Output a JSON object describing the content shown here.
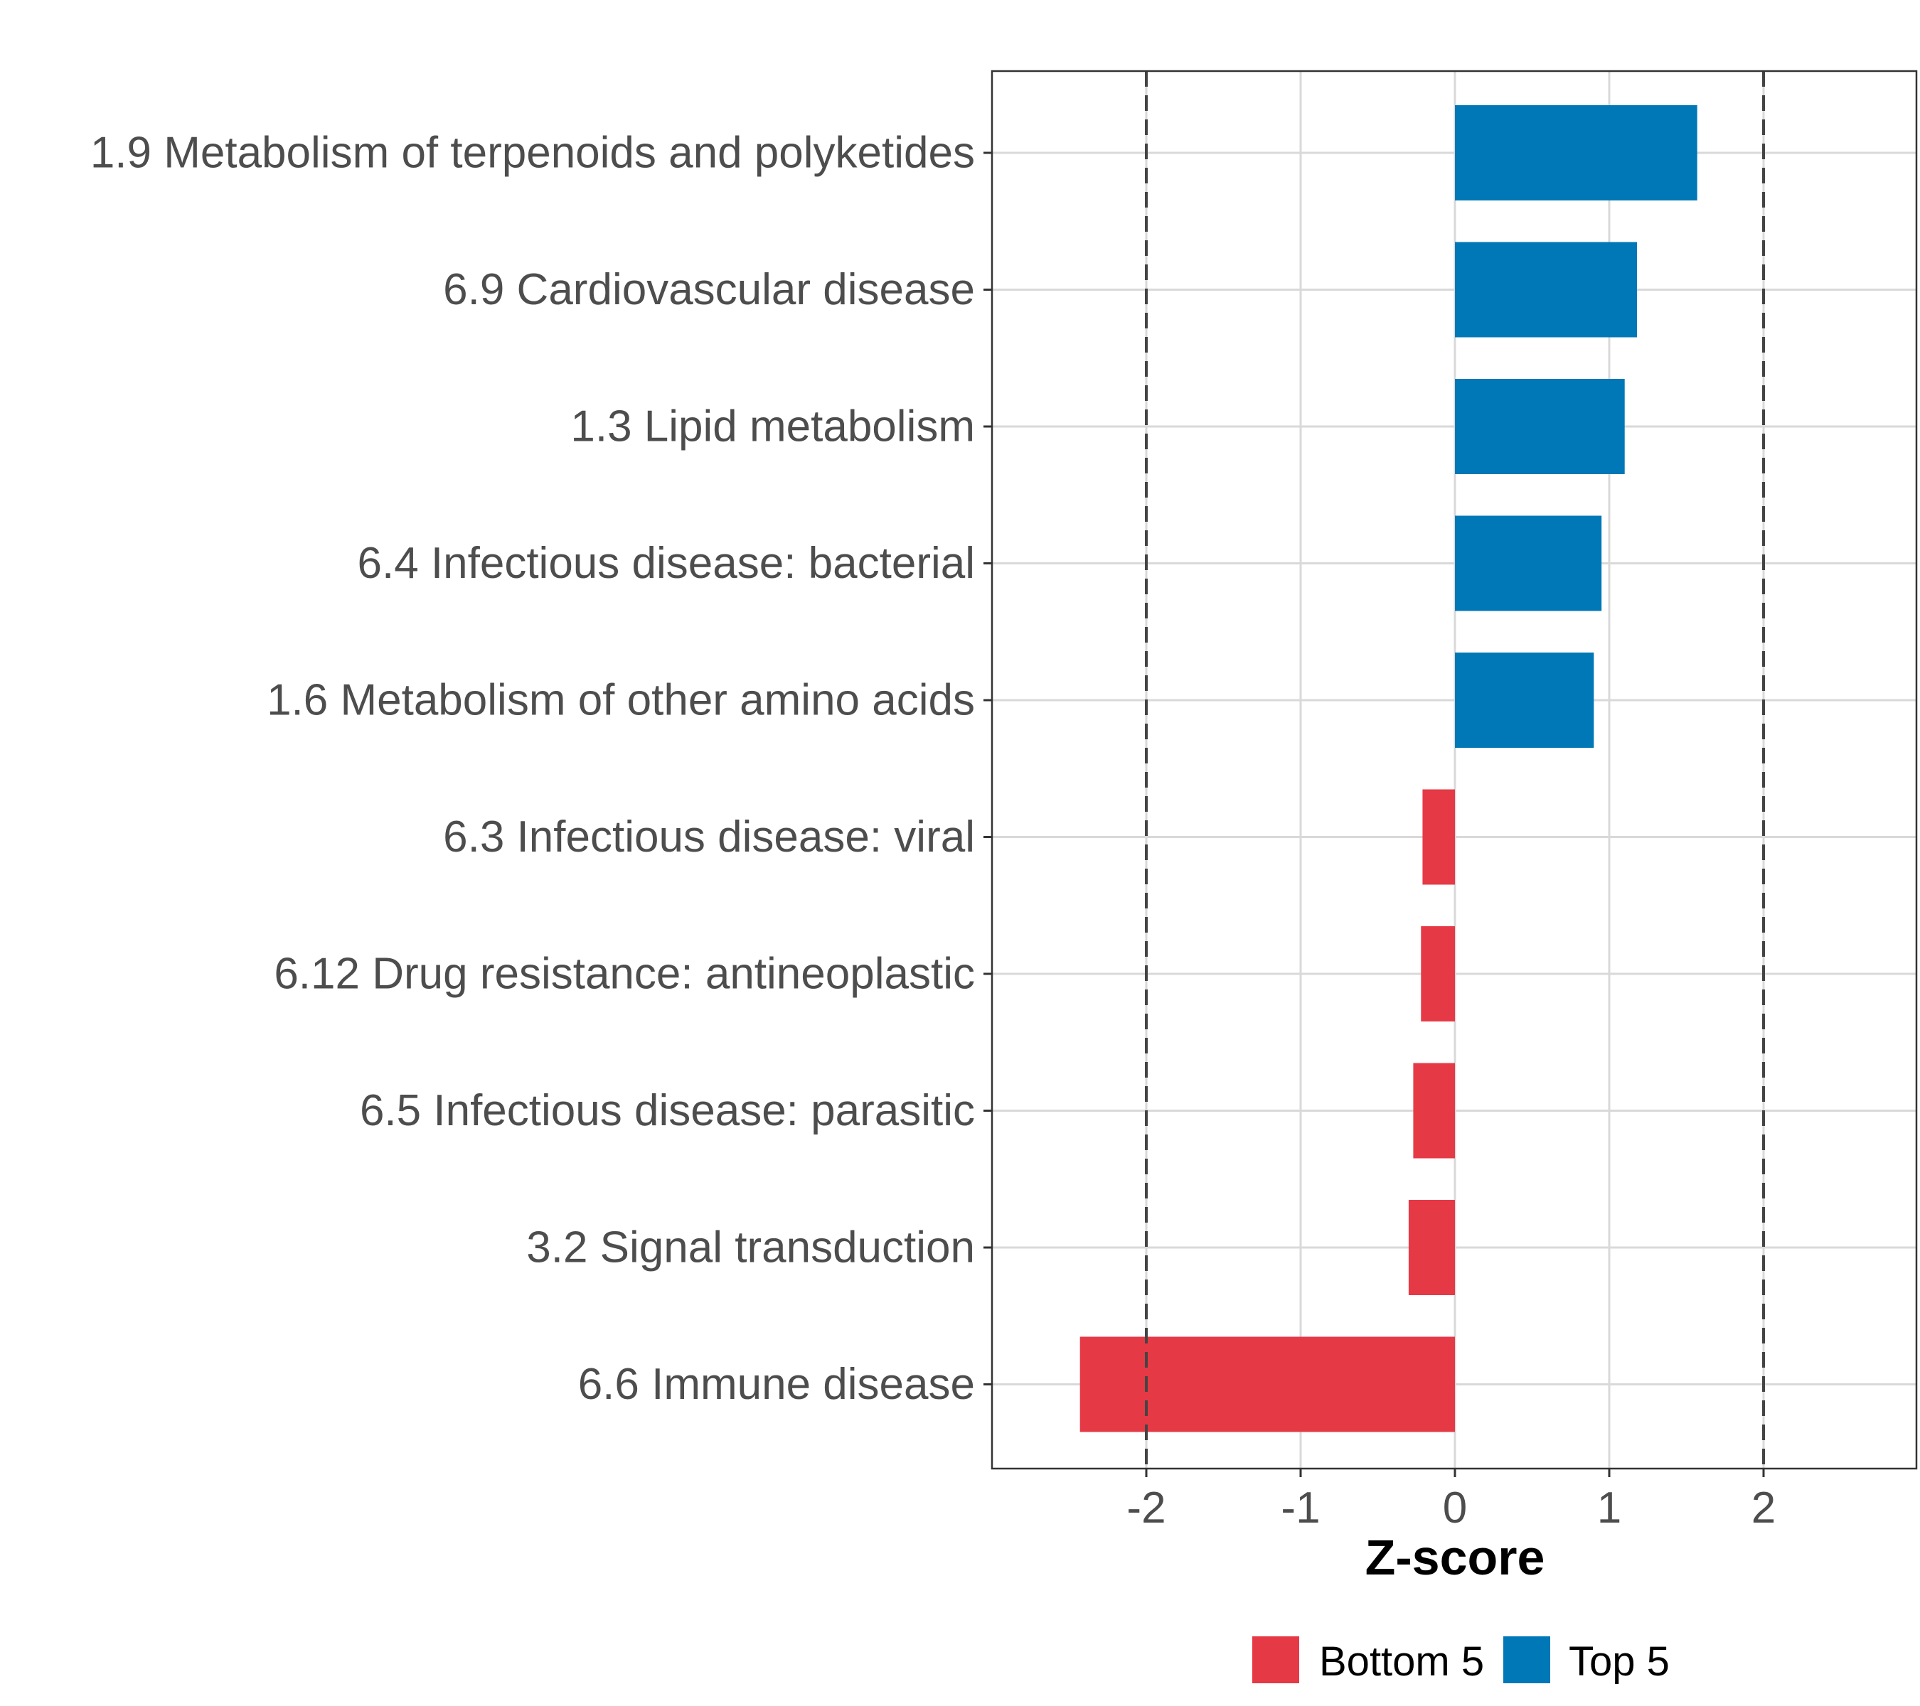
{
  "chart_data": {
    "type": "bar",
    "orientation": "horizontal",
    "title": "",
    "xlabel": "Z-score",
    "ylabel": "",
    "xlim": [
      -3,
      3
    ],
    "x_ticks": [
      -2,
      -1,
      0,
      1,
      2
    ],
    "x_tick_labels": [
      "-2",
      "-1",
      "0",
      "1",
      "2"
    ],
    "grid": true,
    "reference_lines": [
      -2,
      2
    ],
    "categories": [
      "1.9 Metabolism of terpenoids and polyketides",
      "6.9 Cardiovascular disease",
      "1.3 Lipid metabolism",
      "6.4 Infectious disease: bacterial",
      "1.6 Metabolism of other amino acids",
      "6.3 Infectious disease: viral",
      "6.12 Drug resistance: antineoplastic",
      "6.5 Infectious disease: parasitic",
      "3.2 Signal transduction",
      "6.6 Immune disease"
    ],
    "values": [
      1.57,
      1.18,
      1.1,
      0.95,
      0.9,
      -0.21,
      -0.22,
      -0.27,
      -0.3,
      -2.43
    ],
    "groups": [
      "Top 5",
      "Top 5",
      "Top 5",
      "Top 5",
      "Top 5",
      "Bottom 5",
      "Bottom 5",
      "Bottom 5",
      "Bottom 5",
      "Bottom 5"
    ],
    "legend": {
      "position": "bottom",
      "items": [
        {
          "label": "Bottom 5",
          "color": "#e63946"
        },
        {
          "label": "Top 5",
          "color": "#0077b6"
        }
      ]
    }
  }
}
